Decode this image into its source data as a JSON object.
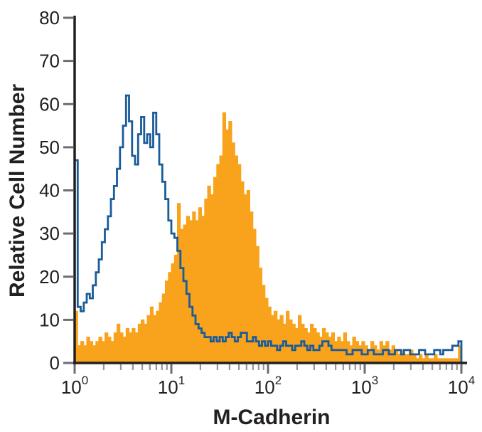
{
  "page": {
    "background": "#FFFFFF",
    "description": "Flow cytometry overlay histogram"
  },
  "chart_data": {
    "type": "bar",
    "subtype": "flow-cytometry-step-histogram-overlay",
    "title": "",
    "xlabel": "M-Cadherin",
    "ylabel": "Relative Cell Number",
    "x_scale": "log10",
    "x_range": [
      1,
      10000
    ],
    "ylim": [
      0,
      80
    ],
    "grid": false,
    "legend_position": "none",
    "y_ticks": [
      0,
      10,
      20,
      30,
      40,
      50,
      60,
      70,
      80
    ],
    "x_tick_base": "10",
    "x_tick_exponents": [
      0,
      1,
      2,
      3,
      4
    ],
    "x_minor_tick_multiples": [
      2,
      3,
      4,
      5,
      6,
      7,
      8,
      9
    ],
    "bins_per_decade": 32,
    "colors": {
      "axis": "#231F20",
      "tick_major": "#6D6E71",
      "tick_minor": "#939598",
      "label_text": "#231F20",
      "open_series": "#1A5B99",
      "filled_series": "#F9A21B"
    },
    "series": [
      {
        "name": "filled-histogram-stained",
        "render": "filled",
        "color": "#F9A21B",
        "values": [
          12,
          4,
          5,
          4,
          6,
          5,
          4,
          5,
          6,
          5,
          7,
          6,
          5,
          7,
          9,
          7,
          6,
          8,
          7,
          8,
          7,
          9,
          10,
          9,
          11,
          13,
          11,
          12,
          14,
          16,
          19,
          21,
          23,
          25,
          37,
          31,
          32,
          34,
          33,
          35,
          33,
          36,
          34,
          38,
          41,
          39,
          43,
          46,
          48,
          58,
          54,
          56,
          51,
          48,
          46,
          42,
          39,
          40,
          35,
          31,
          27,
          22,
          18,
          15,
          13,
          11,
          12,
          10,
          11,
          9,
          12,
          10,
          9,
          8,
          11,
          9,
          8,
          7,
          9,
          8,
          7,
          6,
          8,
          7,
          6,
          7,
          5,
          6,
          5,
          7,
          5,
          4,
          6,
          5,
          4,
          5,
          4,
          3,
          5,
          4,
          3,
          5,
          4,
          5,
          3,
          4,
          3,
          2,
          3,
          2,
          2,
          3,
          2,
          1,
          2,
          1,
          2,
          1,
          1,
          2,
          1,
          1,
          1,
          1,
          1,
          1,
          1,
          4
        ]
      },
      {
        "name": "open-histogram-control",
        "render": "outline",
        "color": "#1A5B99",
        "values": [
          47,
          13,
          12,
          14,
          16,
          15,
          18,
          21,
          24,
          28,
          31,
          34,
          38,
          41,
          45,
          50,
          55,
          62,
          56,
          48,
          46,
          53,
          57,
          51,
          53,
          50,
          58,
          53,
          46,
          42,
          38,
          33,
          30,
          29,
          26,
          22,
          19,
          16,
          13,
          11,
          9,
          8,
          7,
          6,
          6,
          5,
          6,
          5,
          6,
          5,
          6,
          7,
          6,
          5,
          6,
          7,
          7,
          5,
          5,
          6,
          5,
          4,
          5,
          4,
          5,
          4,
          4,
          3,
          4,
          5,
          4,
          4,
          3,
          4,
          4,
          5,
          4,
          3,
          4,
          3,
          3,
          4,
          5,
          5,
          4,
          3,
          3,
          3,
          3,
          3,
          2,
          2,
          3,
          3,
          3,
          2,
          2,
          3,
          3,
          2,
          2,
          2,
          3,
          3,
          2,
          2,
          3,
          3,
          2,
          3,
          3,
          2,
          2,
          2,
          3,
          3,
          2,
          2,
          2,
          3,
          3,
          2,
          3,
          3,
          3,
          4,
          4,
          5
        ]
      }
    ]
  }
}
